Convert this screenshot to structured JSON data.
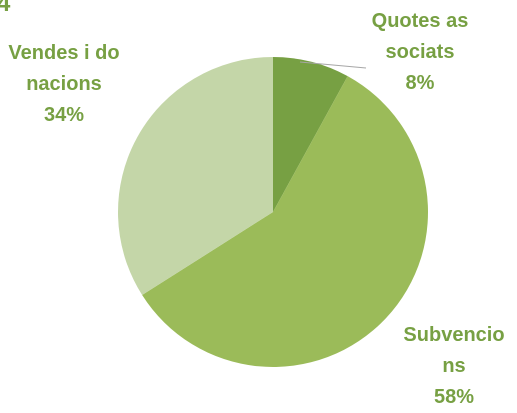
{
  "chart_data": {
    "type": "pie",
    "title": "4",
    "categories": [
      "Quotes associats",
      "Subvencions",
      "Vendes i donacions"
    ],
    "values": [
      8,
      58,
      34
    ],
    "value_labels": [
      "8%",
      "58%",
      "34%"
    ],
    "colors": [
      "#77a043",
      "#9bbb59",
      "#c4d6a8"
    ]
  }
}
